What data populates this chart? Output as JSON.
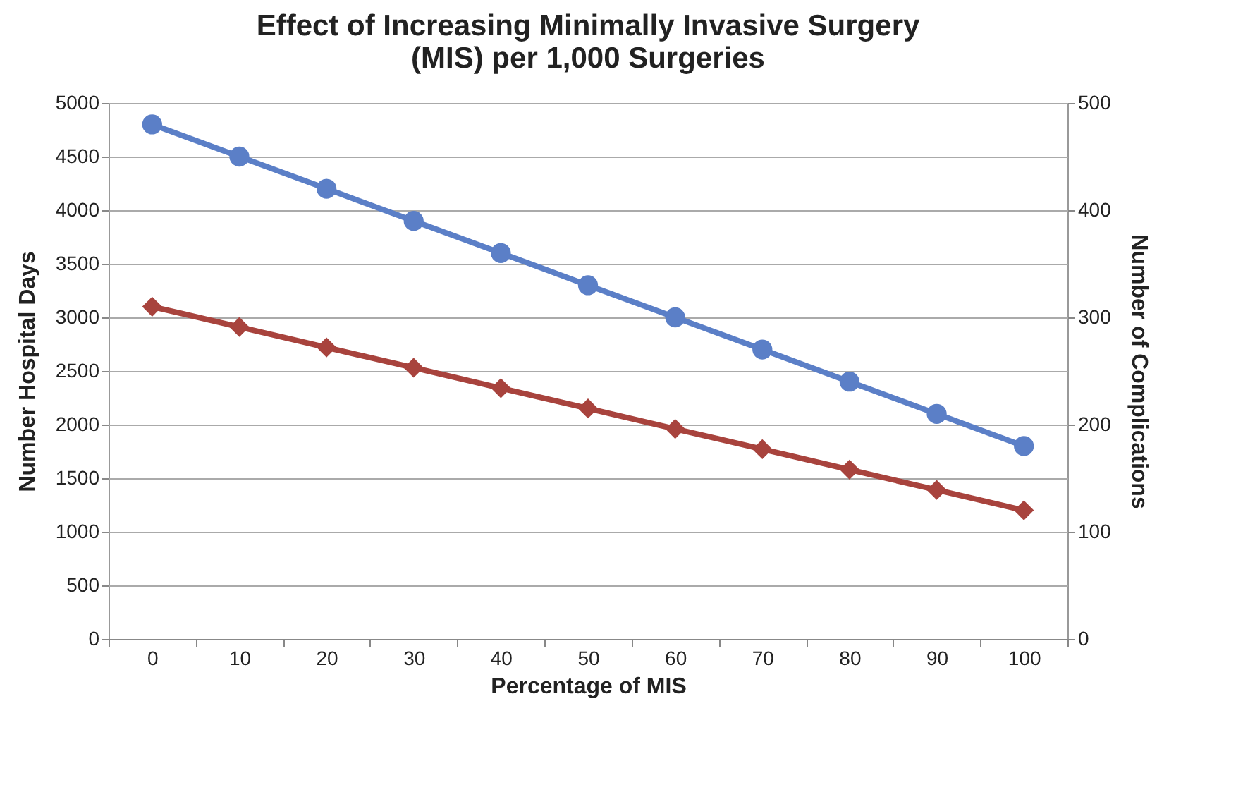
{
  "chart_data": {
    "type": "line",
    "title": "Effect of Increasing Minimally Invasive Surgery\n(MIS) per 1,000 Surgeries",
    "xlabel": "Percentage of MIS",
    "ylabel": "Number Hospital Days",
    "y2label": "Number of Complications",
    "categories": [
      "0",
      "10",
      "20",
      "30",
      "40",
      "50",
      "60",
      "70",
      "80",
      "90",
      "100"
    ],
    "series": [
      {
        "color": "#5b7fc7",
        "marker": "circle",
        "values": [
          4800,
          4500,
          4200,
          3900,
          3600,
          3300,
          3000,
          2700,
          2400,
          2100,
          1800
        ]
      },
      {
        "color": "#a8433d",
        "marker": "diamond",
        "axis": "y2",
        "values": [
          310,
          291,
          272,
          253,
          234,
          215,
          196,
          177,
          158,
          139,
          120
        ]
      }
    ],
    "ylim": [
      0,
      5000
    ],
    "yticks": [
      0,
      500,
      1000,
      1500,
      2000,
      2500,
      3000,
      3500,
      4000,
      4500,
      5000
    ],
    "y2lim": [
      0,
      500
    ],
    "y2ticks": [
      0,
      100,
      200,
      300,
      400,
      500
    ],
    "grid": "y"
  }
}
